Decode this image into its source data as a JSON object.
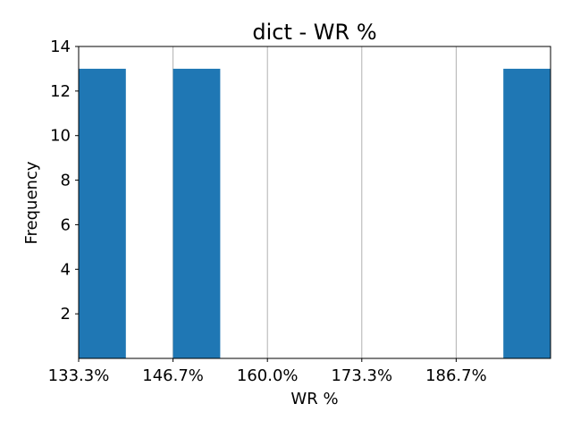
{
  "chart_data": {
    "type": "bar",
    "title": "dict - WR %",
    "xlabel": "WR %",
    "ylabel": "Frequency",
    "ylim": [
      0,
      14
    ],
    "xlim": [
      133.333,
      200.0
    ],
    "grid": "x-only",
    "bar_color": "#1f77b4",
    "bins": [
      {
        "start": 133.333,
        "end": 140.0,
        "value": 13
      },
      {
        "start": 146.667,
        "end": 153.333,
        "value": 13
      },
      {
        "start": 193.333,
        "end": 200.0,
        "value": 13
      }
    ],
    "x_ticks": [
      {
        "value": 133.333,
        "label": "133.3%"
      },
      {
        "value": 146.667,
        "label": "146.7%"
      },
      {
        "value": 160.0,
        "label": "160.0%"
      },
      {
        "value": 173.333,
        "label": "173.3%"
      },
      {
        "value": 186.667,
        "label": "186.7%"
      }
    ],
    "y_ticks": [
      {
        "value": 2,
        "label": "2"
      },
      {
        "value": 4,
        "label": "4"
      },
      {
        "value": 6,
        "label": "6"
      },
      {
        "value": 8,
        "label": "8"
      },
      {
        "value": 10,
        "label": "10"
      },
      {
        "value": 12,
        "label": "12"
      },
      {
        "value": 14,
        "label": "14"
      }
    ]
  }
}
